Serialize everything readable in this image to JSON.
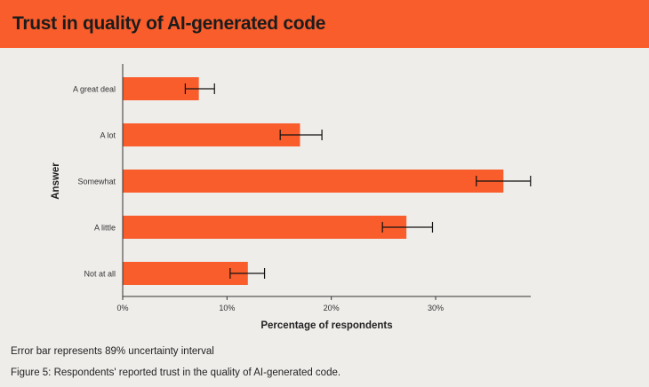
{
  "title": "Trust in quality of AI-generated code",
  "note": "Error bar represents 89% uncertainty interval",
  "caption": "Figure 5: Respondents' reported trust in the quality of AI-generated code.",
  "colors": {
    "bar": "#f95d2c",
    "header": "#f95d2c",
    "background": "#efedea"
  },
  "chart_data": {
    "type": "bar",
    "orientation": "horizontal",
    "categories": [
      "A great deal",
      "A lot",
      "Somewhat",
      "A little",
      "Not at all"
    ],
    "values": [
      7.3,
      17.0,
      36.5,
      27.2,
      12.0
    ],
    "error_low": [
      6.0,
      15.1,
      33.9,
      24.9,
      10.3
    ],
    "error_high": [
      8.8,
      19.1,
      39.1,
      29.7,
      13.6
    ],
    "xlabel": "Percentage of respondents",
    "ylabel": "Answer",
    "xticks": [
      0,
      10,
      20,
      30
    ],
    "xtick_labels": [
      "0%",
      "10%",
      "20%",
      "30%"
    ],
    "xlim": [
      0,
      39.1
    ],
    "grid": false
  }
}
